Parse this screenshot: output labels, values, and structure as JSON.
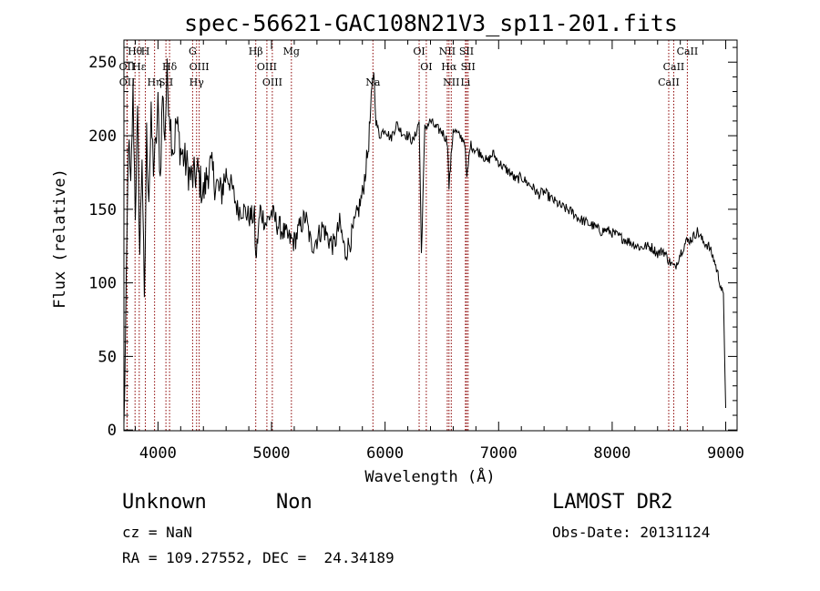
{
  "chart_data": {
    "type": "line",
    "title": "spec-56621-GAC108N21V3_sp11-201.fits",
    "xlabel": "Wavelength (Å)",
    "ylabel": "Flux (relative)",
    "xlim": [
      3700,
      9100
    ],
    "ylim": [
      -5,
      2650
    ],
    "x_ticks": [
      4000,
      5000,
      6000,
      7000,
      8000,
      9000
    ],
    "y_ticks": [
      0,
      50,
      100,
      150,
      200,
      250
    ],
    "y_tick_labels": [
      "0",
      "50",
      "100",
      "150",
      "200",
      "250"
    ],
    "spectrum": {
      "x": [
        3700,
        3720,
        3740,
        3760,
        3780,
        3800,
        3820,
        3840,
        3860,
        3880,
        3900,
        3920,
        3940,
        3960,
        3980,
        4000,
        4020,
        4040,
        4060,
        4080,
        4100,
        4120,
        4140,
        4160,
        4180,
        4200,
        4250,
        4300,
        4350,
        4400,
        4450,
        4500,
        4550,
        4600,
        4650,
        4700,
        4750,
        4800,
        4850,
        4861,
        4900,
        4950,
        5000,
        5050,
        5100,
        5150,
        5200,
        5250,
        5300,
        5350,
        5400,
        5450,
        5500,
        5550,
        5600,
        5650,
        5700,
        5750,
        5800,
        5850,
        5890,
        5900,
        5920,
        5950,
        6000,
        6050,
        6100,
        6150,
        6200,
        6250,
        6300,
        6320,
        6350,
        6400,
        6450,
        6500,
        6550,
        6563,
        6600,
        6650,
        6700,
        6720,
        6750,
        6800,
        6850,
        6900,
        6950,
        7000,
        7050,
        7100,
        7150,
        7200,
        7250,
        7300,
        7350,
        7400,
        7450,
        7500,
        7550,
        7600,
        7650,
        7700,
        7750,
        7800,
        7850,
        7900,
        7950,
        8000,
        8050,
        8100,
        8150,
        8200,
        8250,
        8300,
        8350,
        8400,
        8450,
        8500,
        8550,
        8600,
        8650,
        8700,
        8750,
        8800,
        8850,
        8900,
        8950,
        8980,
        9000
      ],
      "y": [
        0,
        90,
        200,
        160,
        230,
        150,
        210,
        120,
        190,
        80,
        200,
        160,
        210,
        180,
        190,
        220,
        170,
        230,
        200,
        240,
        220,
        200,
        190,
        210,
        200,
        190,
        180,
        170,
        175,
        160,
        180,
        170,
        160,
        175,
        165,
        150,
        150,
        145,
        145,
        115,
        150,
        140,
        148,
        140,
        135,
        130,
        128,
        138,
        145,
        125,
        130,
        138,
        130,
        125,
        140,
        120,
        130,
        145,
        160,
        190,
        235,
        245,
        210,
        200,
        205,
        198,
        208,
        202,
        200,
        196,
        210,
        120,
        205,
        210,
        205,
        203,
        196,
        165,
        205,
        200,
        197,
        170,
        194,
        190,
        188,
        182,
        188,
        182,
        178,
        175,
        170,
        172,
        168,
        165,
        160,
        162,
        158,
        155,
        152,
        150,
        148,
        144,
        142,
        140,
        138,
        135,
        136,
        134,
        132,
        130,
        128,
        126,
        124,
        125,
        124,
        120,
        122,
        115,
        110,
        120,
        128,
        130,
        135,
        128,
        125,
        115,
        100,
        90,
        15
      ],
      "color": "#000000"
    },
    "spectral_lines": [
      {
        "label": "Hθ",
        "x": 3798,
        "row": 0
      },
      {
        "label": "H",
        "x": 3889,
        "row": 0
      },
      {
        "label": "G",
        "x": 4305,
        "row": 0
      },
      {
        "label": "Hβ",
        "x": 4861,
        "row": 0
      },
      {
        "label": "Mg",
        "x": 5175,
        "row": 0
      },
      {
        "label": "OI",
        "x": 6300,
        "row": 0
      },
      {
        "label": "NII",
        "x": 6548,
        "row": 0
      },
      {
        "label": "SII",
        "x": 6717,
        "row": 0
      },
      {
        "label": "CaII",
        "x": 8662,
        "row": 0
      },
      {
        "label": "OII",
        "x": 3727,
        "row": 1
      },
      {
        "label": "Hε",
        "x": 3835,
        "row": 1
      },
      {
        "label": "Hδ",
        "x": 4102,
        "row": 1
      },
      {
        "label": "OIII",
        "x": 4363,
        "row": 1
      },
      {
        "label": "OIII",
        "x": 4959,
        "row": 1
      },
      {
        "label": "OI",
        "x": 6363,
        "row": 1
      },
      {
        "label": "Hα",
        "x": 6563,
        "row": 1
      },
      {
        "label": "SII",
        "x": 6731,
        "row": 1
      },
      {
        "label": "CaII",
        "x": 8542,
        "row": 1
      },
      {
        "label": "OII",
        "x": 3729,
        "row": 2
      },
      {
        "label": "Hη",
        "x": 3970,
        "row": 2
      },
      {
        "label": "SII",
        "x": 4070,
        "row": 2
      },
      {
        "label": "Hγ",
        "x": 4340,
        "row": 2
      },
      {
        "label": "OIII",
        "x": 5007,
        "row": 2
      },
      {
        "label": "Na",
        "x": 5893,
        "row": 2
      },
      {
        "label": "NII",
        "x": 6583,
        "row": 2
      },
      {
        "label": "Li",
        "x": 6708,
        "row": 2
      },
      {
        "label": "CaII",
        "x": 8498,
        "row": 2
      }
    ],
    "line_color": "#8b0000"
  },
  "info": {
    "class": "Unknown",
    "subclass": "Non",
    "survey": "LAMOST DR2",
    "cz": "cz = NaN",
    "obs_date": "Obs-Date: 20131124",
    "coords": "RA = 109.27552, DEC =  24.34189"
  }
}
